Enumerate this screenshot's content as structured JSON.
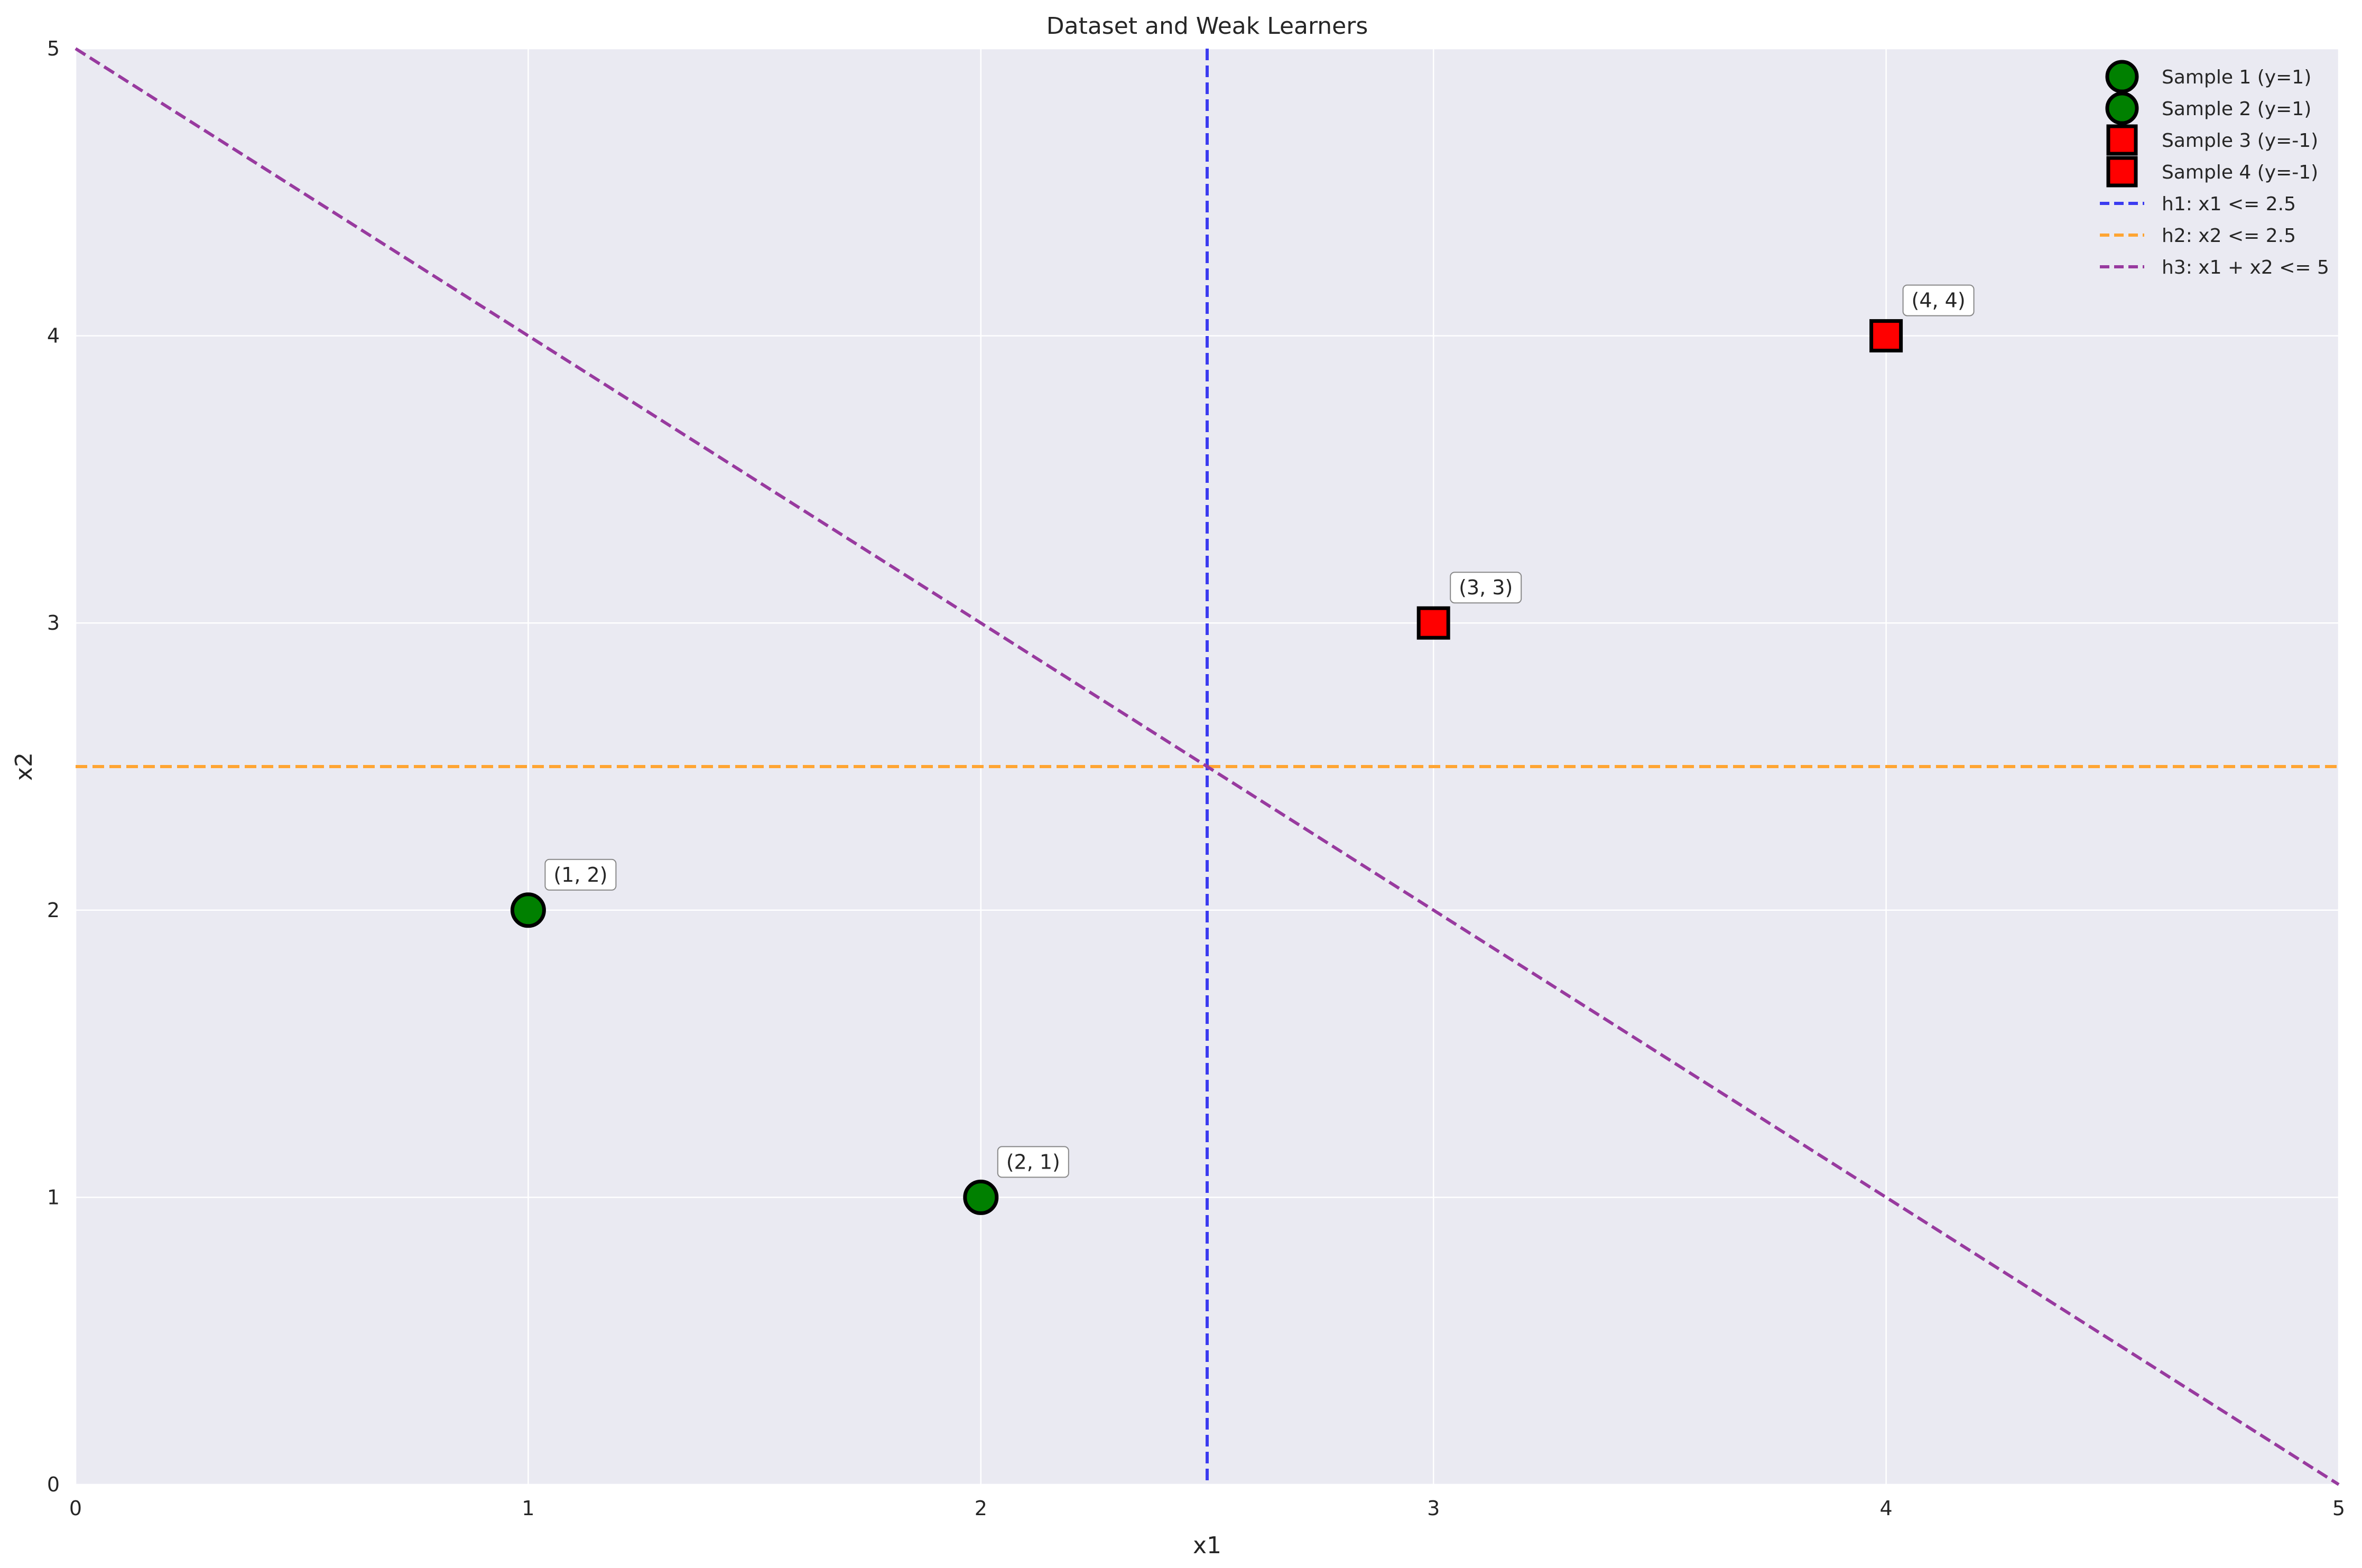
{
  "chart_data": {
    "type": "scatter",
    "title": "Dataset and Weak Learners",
    "xlabel": "x1",
    "ylabel": "x2",
    "xlim": [
      0,
      5
    ],
    "ylim": [
      0,
      5
    ],
    "xticks": [
      0,
      1,
      2,
      3,
      4,
      5
    ],
    "yticks": [
      0,
      1,
      2,
      3,
      4,
      5
    ],
    "grid": true,
    "legend_position": "top-right",
    "background_color": "#EAEAF2",
    "points": [
      {
        "name": "Sample 1 (y=1)",
        "x": 1,
        "y": 2,
        "label": "y=1",
        "marker": "circle",
        "color": "#008000",
        "annotation": "(1, 2)"
      },
      {
        "name": "Sample 2 (y=1)",
        "x": 2,
        "y": 1,
        "label": "y=1",
        "marker": "circle",
        "color": "#008000",
        "annotation": "(2, 1)"
      },
      {
        "name": "Sample 3 (y=-1)",
        "x": 3,
        "y": 3,
        "label": "y=-1",
        "marker": "square",
        "color": "#FF0000",
        "annotation": "(3, 3)"
      },
      {
        "name": "Sample 4 (y=-1)",
        "x": 4,
        "y": 4,
        "label": "y=-1",
        "marker": "square",
        "color": "#FF0000",
        "annotation": "(4, 4)"
      }
    ],
    "lines": [
      {
        "name": "h1: x1 <= 2.5",
        "kind": "vertical",
        "x": 2.5,
        "color": "#3B3BF0"
      },
      {
        "name": "h2: x2 <= 2.5",
        "kind": "horizontal",
        "y": 2.5,
        "color": "#FFA533"
      },
      {
        "name": "h3: x1 + x2 <= 5",
        "kind": "segment",
        "points": [
          [
            0,
            5
          ],
          [
            5,
            0
          ]
        ],
        "color": "#983A9F"
      }
    ]
  }
}
